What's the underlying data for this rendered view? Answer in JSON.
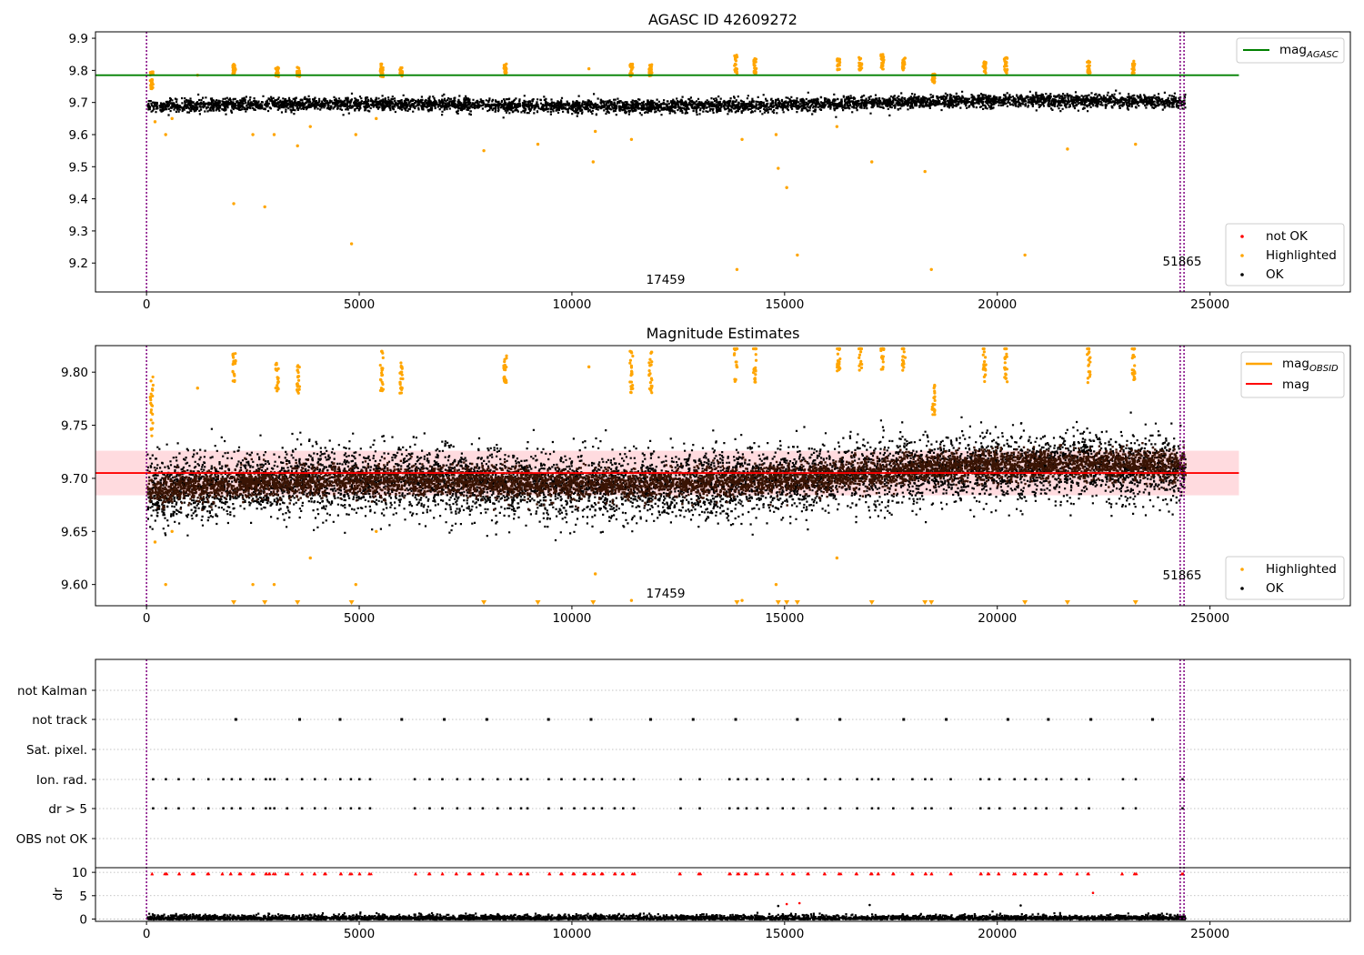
{
  "chart_data": [
    {
      "type": "scatter",
      "title": "AGASC ID 42609272",
      "xlim": [
        -1200,
        28300
      ],
      "ylim": [
        9.11,
        9.92
      ],
      "xticks": [
        0,
        5000,
        10000,
        15000,
        20000,
        25000
      ],
      "xtick_labels": [
        "0",
        "5000",
        "10000",
        "15000",
        "20000",
        "25000"
      ],
      "yticks": [
        9.2,
        9.3,
        9.4,
        9.5,
        9.6,
        9.7,
        9.8,
        9.9
      ],
      "ytick_labels": [
        "9.2",
        "9.3",
        "9.4",
        "9.5",
        "9.6",
        "9.7",
        "9.8",
        "9.9"
      ],
      "vlines": [
        0,
        24300,
        24390
      ],
      "hline": {
        "label": "mag_AGASC",
        "y": 9.785,
        "x_range": [
          -1200,
          25680
        ],
        "color": "#008000"
      },
      "annotations": [
        {
          "text": "17459",
          "x": 12150,
          "y": 9.145
        },
        {
          "text": "51865",
          "x": 24340,
          "y": 9.2
        }
      ],
      "ok_points": {
        "x_range": [
          0,
          24400
        ],
        "median_start": 9.69,
        "median_end": 9.705,
        "spread": 0.02
      },
      "highlighted_clusters": [
        {
          "x": 120,
          "y": [
            9.74,
            9.8
          ]
        },
        {
          "x": 2060,
          "y": [
            9.79,
            9.82
          ]
        },
        {
          "x": 3070,
          "y": [
            9.78,
            9.81
          ]
        },
        {
          "x": 3570,
          "y": [
            9.78,
            9.81
          ]
        },
        {
          "x": 5530,
          "y": [
            9.78,
            9.82
          ]
        },
        {
          "x": 5990,
          "y": [
            9.78,
            9.81
          ]
        },
        {
          "x": 8430,
          "y": [
            9.79,
            9.82
          ]
        },
        {
          "x": 11400,
          "y": [
            9.78,
            9.82
          ]
        },
        {
          "x": 11850,
          "y": [
            9.78,
            9.82
          ]
        },
        {
          "x": 13850,
          "y": [
            9.79,
            9.85
          ]
        },
        {
          "x": 14300,
          "y": [
            9.79,
            9.84
          ]
        },
        {
          "x": 16270,
          "y": [
            9.8,
            9.84
          ]
        },
        {
          "x": 16780,
          "y": [
            9.8,
            9.84
          ]
        },
        {
          "x": 17300,
          "y": [
            9.8,
            9.85
          ]
        },
        {
          "x": 17800,
          "y": [
            9.8,
            9.84
          ]
        },
        {
          "x": 18500,
          "y": [
            9.76,
            9.79
          ]
        },
        {
          "x": 19700,
          "y": [
            9.79,
            9.83
          ]
        },
        {
          "x": 20200,
          "y": [
            9.79,
            9.84
          ]
        },
        {
          "x": 22150,
          "y": [
            9.79,
            9.83
          ]
        },
        {
          "x": 23200,
          "y": [
            9.79,
            9.83
          ]
        }
      ],
      "highlighted_points": [
        {
          "x": 200,
          "y": 9.64
        },
        {
          "x": 450,
          "y": 9.6
        },
        {
          "x": 600,
          "y": 9.65
        },
        {
          "x": 1200,
          "y": 9.785
        },
        {
          "x": 2050,
          "y": 9.385
        },
        {
          "x": 2500,
          "y": 9.6
        },
        {
          "x": 2780,
          "y": 9.375
        },
        {
          "x": 3000,
          "y": 9.6
        },
        {
          "x": 3550,
          "y": 9.565
        },
        {
          "x": 3850,
          "y": 9.625
        },
        {
          "x": 4820,
          "y": 9.26
        },
        {
          "x": 4920,
          "y": 9.6
        },
        {
          "x": 5400,
          "y": 9.65
        },
        {
          "x": 7930,
          "y": 9.55
        },
        {
          "x": 9200,
          "y": 9.57
        },
        {
          "x": 10400,
          "y": 9.805
        },
        {
          "x": 10500,
          "y": 9.515
        },
        {
          "x": 10550,
          "y": 9.61
        },
        {
          "x": 11400,
          "y": 9.585
        },
        {
          "x": 13880,
          "y": 9.18
        },
        {
          "x": 14000,
          "y": 9.585
        },
        {
          "x": 14800,
          "y": 9.6
        },
        {
          "x": 14850,
          "y": 9.495
        },
        {
          "x": 15050,
          "y": 9.435
        },
        {
          "x": 15300,
          "y": 9.225
        },
        {
          "x": 16230,
          "y": 9.625
        },
        {
          "x": 17050,
          "y": 9.515
        },
        {
          "x": 18300,
          "y": 9.485
        },
        {
          "x": 18450,
          "y": 9.18
        },
        {
          "x": 20650,
          "y": 9.225
        },
        {
          "x": 21650,
          "y": 9.555
        },
        {
          "x": 23250,
          "y": 9.57
        }
      ],
      "legend": [
        {
          "label": "not OK",
          "color": "#ff0000"
        },
        {
          "label": "Highlighted",
          "color": "#ffa500"
        },
        {
          "label": "OK",
          "color": "#000000"
        }
      ],
      "legend_line": [
        {
          "label": "mag",
          "sub": "AGASC",
          "color": "#008000"
        }
      ],
      "legend_placement": [
        "upper right",
        "lower right"
      ]
    },
    {
      "type": "scatter",
      "title": "Magnitude Estimates",
      "xlim": [
        -1200,
        28300
      ],
      "ylim": [
        9.58,
        9.825
      ],
      "xticks": [
        0,
        5000,
        10000,
        15000,
        20000,
        25000
      ],
      "xtick_labels": [
        "0",
        "5000",
        "10000",
        "15000",
        "20000",
        "25000"
      ],
      "yticks": [
        9.6,
        9.65,
        9.7,
        9.75,
        9.8
      ],
      "ytick_labels": [
        "9.60",
        "9.65",
        "9.70",
        "9.75",
        "9.80"
      ],
      "vlines": [
        0,
        24300,
        24390
      ],
      "hline": {
        "label": "mag",
        "y": 9.705,
        "x_range": [
          -1200,
          25680
        ],
        "color": "#ff0000"
      },
      "band": {
        "y": [
          9.684,
          9.726
        ],
        "color": "#ffb0b8"
      },
      "obsid_line": {
        "label": "mag_OBSID",
        "color": "#ffa500",
        "segments": [
          [
            0,
            9.69
          ],
          [
            24390,
            9.712
          ]
        ]
      },
      "annotations": [
        {
          "text": "17459",
          "x": 12150,
          "y": 9.5895
        },
        {
          "text": "51865",
          "x": 24340,
          "y": 9.61
        }
      ],
      "legend": [
        {
          "label": "Highlighted",
          "color": "#ffa500"
        },
        {
          "label": "OK",
          "color": "#000000"
        }
      ],
      "legend_line": [
        {
          "label": "mag",
          "sub": "OBSID",
          "color": "#ffa500"
        },
        {
          "label": "mag",
          "sub": "",
          "color": "#ff0000"
        }
      ],
      "legend_placement": [
        "upper right",
        "lower right"
      ]
    },
    {
      "type": "scatter",
      "xlim": [
        -1200,
        28300
      ],
      "xticks": [
        0,
        5000,
        10000,
        15000,
        20000,
        25000
      ],
      "xtick_labels": [
        "0",
        "5000",
        "10000",
        "15000",
        "20000",
        "25000"
      ],
      "flag_rows": [
        "not Kalman",
        "not track",
        "Sat. pixel.",
        "Ion. rad.",
        "dr > 5",
        "OBS not OK"
      ],
      "not_track_x": [
        2100,
        3600,
        4550,
        6000,
        7000,
        8000,
        9450,
        10450,
        11850,
        12850,
        13850,
        15300,
        16300,
        17800,
        18800,
        20250,
        21200,
        22200,
        23650
      ],
      "ion_rad_x": [
        150,
        450,
        750,
        1100,
        1450,
        1800,
        2000,
        2200,
        2500,
        2800,
        2900,
        3000,
        3300,
        3650,
        3950,
        4200,
        4550,
        4800,
        5000,
        5250,
        6300,
        6650,
        6950,
        7300,
        7600,
        7900,
        8250,
        8550,
        8800,
        8950,
        9450,
        9750,
        10050,
        10300,
        10500,
        10700,
        11000,
        11200,
        11450,
        12550,
        13000,
        13700,
        13900,
        14100,
        14350,
        14600,
        14950,
        15200,
        15550,
        15950,
        16300,
        16700,
        17050,
        17200,
        17550,
        18000,
        18300,
        18450,
        18900,
        19600,
        19800,
        20050,
        20400,
        20650,
        20900,
        21150,
        21500,
        21850,
        22150,
        22950,
        23250,
        24350
      ],
      "dr_ylabel": "dr",
      "dr_ylim": [
        -0.5,
        11
      ],
      "dr_yticks": [
        0,
        5,
        10
      ],
      "dr_ytick_labels": [
        "0",
        "5",
        "10"
      ],
      "dr_outliers": [
        {
          "x": 15050,
          "y": 3.2
        },
        {
          "x": 15350,
          "y": 3.4
        },
        {
          "x": 22250,
          "y": 5.6
        },
        {
          "x": 14850,
          "y": 2.8
        },
        {
          "x": 17000,
          "y": 3.0
        },
        {
          "x": 20550,
          "y": 2.9
        }
      ]
    }
  ]
}
